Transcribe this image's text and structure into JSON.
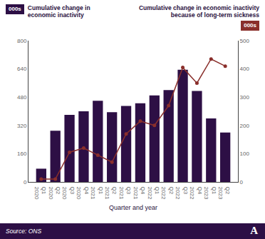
{
  "chart_data": {
    "type": "bar",
    "xlabel": "Quarter and year",
    "ylabel": "000s",
    "y2label": "000s",
    "source": "Source: ONS",
    "logo": "A",
    "categories": [
      "Q1 2020",
      "Q2 2020",
      "Q3 2020",
      "Q4 2020",
      "Q1 2021",
      "Q2 2021",
      "Q3 2021",
      "Q4 2021",
      "Q1 2022",
      "Q2 2022",
      "Q3 2022",
      "Q4 2022",
      "Q1 2023",
      "Q2 2023"
    ],
    "series": [
      {
        "name": "Cumulative change in economic inactivity",
        "type": "bar",
        "color": "#2d0f45",
        "values": [
          75,
          290,
          380,
          400,
          460,
          395,
          430,
          445,
          490,
          520,
          635,
          515,
          360,
          280
        ]
      },
      {
        "name": "Cumulative change in economic inactivity because of long-term sickness",
        "type": "line",
        "axis": "y2",
        "color": "#8a2f2b",
        "marker": "circle",
        "line_style": "solid",
        "values": [
          10,
          10,
          105,
          120,
          95,
          70,
          170,
          215,
          200,
          270,
          405,
          350,
          435,
          410
        ]
      }
    ],
    "ylim": [
      0,
      800
    ],
    "yticks": [
      0,
      160,
      320,
      480,
      640,
      800
    ],
    "y2lim": [
      0,
      500
    ],
    "y2ticks": [
      0,
      100,
      200,
      300,
      400,
      500
    ],
    "grid": false
  }
}
